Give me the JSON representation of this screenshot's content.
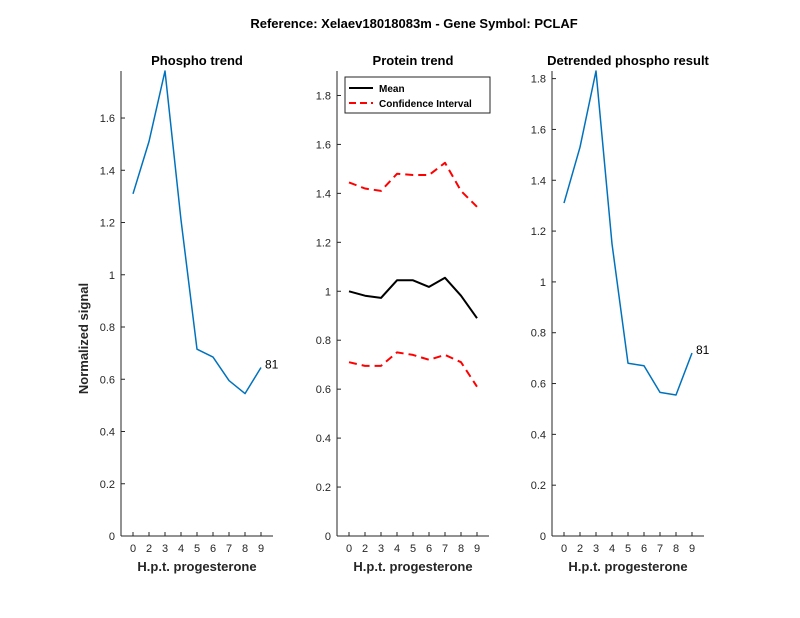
{
  "figure_title": "Reference:  Xelaev18018083m - Gene Symbol:  PCLAF",
  "chart_data": [
    {
      "type": "line",
      "title": "Phospho trend",
      "xlabel": "H.p.t. progesterone",
      "ylabel": "Normalized signal",
      "x": [
        0,
        2,
        3,
        4,
        5,
        6,
        7,
        8,
        9
      ],
      "xtick_labels": [
        "0",
        "2",
        "3",
        "4",
        "5",
        "6",
        "7",
        "8",
        "9"
      ],
      "ylim": [
        0,
        1.78
      ],
      "yticks": [
        0,
        0.2,
        0.4,
        0.6,
        0.8,
        1,
        1.2,
        1.4,
        1.6
      ],
      "ytick_labels": [
        "0",
        "0.2",
        "0.4",
        "0.6",
        "0.8",
        "1",
        "1.2",
        "1.4",
        "1.6"
      ],
      "series": [
        {
          "name": "Phospho",
          "color": "#0072bd",
          "style": "solid",
          "values": [
            1.31,
            1.51,
            1.78,
            1.21,
            0.715,
            0.685,
            0.595,
            0.545,
            0.645
          ]
        }
      ],
      "annotation": {
        "text": "81",
        "at_index": 8
      }
    },
    {
      "type": "line",
      "title": "Protein trend",
      "xlabel": "H.p.t. progesterone",
      "x": [
        0,
        2,
        3,
        4,
        5,
        6,
        7,
        8,
        9
      ],
      "xtick_labels": [
        "0",
        "2",
        "3",
        "4",
        "5",
        "6",
        "7",
        "8",
        "9"
      ],
      "ylim": [
        0,
        1.9
      ],
      "yticks": [
        0,
        0.2,
        0.4,
        0.6,
        0.8,
        1,
        1.2,
        1.4,
        1.6,
        1.8
      ],
      "ytick_labels": [
        "0",
        "0.2",
        "0.4",
        "0.6",
        "0.8",
        "1",
        "1.2",
        "1.4",
        "1.6",
        "1.8"
      ],
      "legend_position": "top-left",
      "series": [
        {
          "name": "Mean",
          "color": "#000000",
          "style": "solid",
          "values": [
            1.0,
            0.982,
            0.973,
            1.045,
            1.045,
            1.018,
            1.055,
            0.982,
            0.89
          ]
        },
        {
          "name": "Confidence Interval",
          "color": "#ff0000",
          "style": "dashed",
          "values": [
            1.445,
            1.42,
            1.41,
            1.48,
            1.475,
            1.475,
            1.525,
            1.41,
            1.345
          ]
        },
        {
          "name": "Confidence Interval lower",
          "legend": false,
          "color": "#ff0000",
          "style": "dashed",
          "values": [
            0.71,
            0.695,
            0.695,
            0.75,
            0.74,
            0.72,
            0.74,
            0.71,
            0.61
          ]
        }
      ]
    },
    {
      "type": "line",
      "title": "Detrended phospho result",
      "xlabel": "H.p.t. progesterone",
      "x": [
        0,
        2,
        3,
        4,
        5,
        6,
        7,
        8,
        9
      ],
      "xtick_labels": [
        "0",
        "2",
        "3",
        "4",
        "5",
        "6",
        "7",
        "8",
        "9"
      ],
      "ylim": [
        0,
        1.83
      ],
      "yticks": [
        0,
        0.2,
        0.4,
        0.6,
        0.8,
        1,
        1.2,
        1.4,
        1.6,
        1.8
      ],
      "ytick_labels": [
        "0",
        "0.2",
        "0.4",
        "0.6",
        "0.8",
        "1",
        "1.2",
        "1.4",
        "1.6",
        "1.8"
      ],
      "series": [
        {
          "name": "Detrended",
          "color": "#0072bd",
          "style": "solid",
          "values": [
            1.31,
            1.53,
            1.83,
            1.15,
            0.68,
            0.67,
            0.565,
            0.555,
            0.72
          ]
        }
      ],
      "annotation": {
        "text": "81",
        "at_index": 8
      }
    }
  ]
}
